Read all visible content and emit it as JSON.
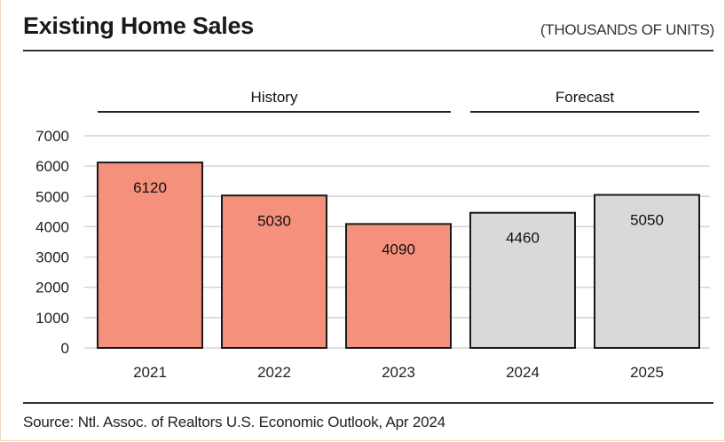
{
  "header": {
    "title": "Existing Home Sales",
    "units": "(THOUSANDS OF UNITS)"
  },
  "footer": {
    "source": "Source: Ntl. Assoc. of Realtors U.S. Economic Outlook, Apr 2024"
  },
  "chart_data": {
    "type": "bar",
    "categories": [
      "2021",
      "2022",
      "2023",
      "2024",
      "2025"
    ],
    "values": [
      6120,
      5030,
      4090,
      4460,
      5050
    ],
    "data_labels": [
      "6120",
      "5030",
      "4090",
      "4460",
      "5050"
    ],
    "period": [
      "history",
      "history",
      "history",
      "forecast",
      "forecast"
    ],
    "groups": [
      {
        "label": "History",
        "categories": [
          "2021",
          "2022",
          "2023"
        ]
      },
      {
        "label": "Forecast",
        "categories": [
          "2024",
          "2025"
        ]
      }
    ],
    "ylim": [
      0,
      7000
    ],
    "yticks": [
      0,
      1000,
      2000,
      3000,
      4000,
      5000,
      6000,
      7000
    ],
    "grid": true,
    "colors": {
      "history": "#f4907b",
      "forecast": "#d9d9d9",
      "outline": "#1a1a1a",
      "grid": "#d4d4d4"
    }
  }
}
